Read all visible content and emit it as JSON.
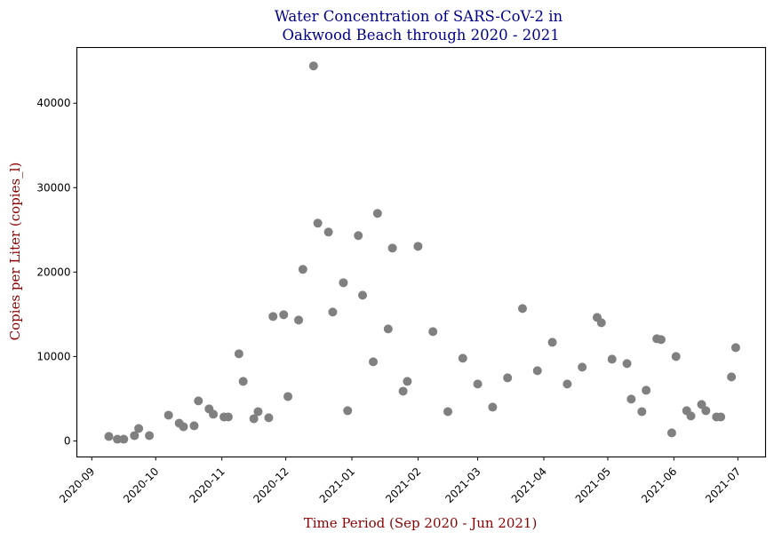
{
  "chart_data": {
    "type": "scatter",
    "title_lines": [
      "Water Concentration of SARS-CoV-2 in",
      " Oakwood Beach through 2020 - 2021"
    ],
    "xlabel": "Time Period (Sep 2020 - Jun 2021)",
    "ylabel": "Copies per Liter (copies_l)",
    "x_type": "date",
    "xlim": [
      "2020-08-25",
      "2021-07-14"
    ],
    "ylim": [
      -1900,
      46600
    ],
    "x_ticks": [
      "2020-09-01",
      "2020-10-01",
      "2020-11-01",
      "2020-12-01",
      "2021-01-01",
      "2021-02-01",
      "2021-03-01",
      "2021-04-01",
      "2021-05-01",
      "2021-06-01",
      "2021-07-01"
    ],
    "x_tick_labels": [
      "2020-09",
      "2020-10",
      "2020-11",
      "2020-12",
      "2021-01",
      "2021-02",
      "2021-03",
      "2021-04",
      "2021-05",
      "2021-06",
      "2021-07"
    ],
    "x_tick_rotation_deg": 45,
    "y_ticks": [
      0,
      10000,
      20000,
      30000,
      40000
    ],
    "y_tick_labels": [
      "0",
      "10000",
      "20000",
      "30000",
      "40000"
    ],
    "grid": false,
    "marker_color": "#808080",
    "title_color": "#00008b",
    "axis_label_color": "#8b0000",
    "series": [
      {
        "name": "copies_l",
        "points": [
          {
            "x": "2020-09-09",
            "y": 530
          },
          {
            "x": "2020-09-13",
            "y": 200
          },
          {
            "x": "2020-09-16",
            "y": 200
          },
          {
            "x": "2020-09-21",
            "y": 630
          },
          {
            "x": "2020-09-23",
            "y": 1470
          },
          {
            "x": "2020-09-28",
            "y": 630
          },
          {
            "x": "2020-10-07",
            "y": 3050
          },
          {
            "x": "2020-10-12",
            "y": 2100
          },
          {
            "x": "2020-10-14",
            "y": 1680
          },
          {
            "x": "2020-10-19",
            "y": 1790
          },
          {
            "x": "2020-10-21",
            "y": 4740
          },
          {
            "x": "2020-10-26",
            "y": 3790
          },
          {
            "x": "2020-10-28",
            "y": 3160
          },
          {
            "x": "2020-11-02",
            "y": 2840
          },
          {
            "x": "2020-11-04",
            "y": 2840
          },
          {
            "x": "2020-11-09",
            "y": 10320
          },
          {
            "x": "2020-11-11",
            "y": 7050
          },
          {
            "x": "2020-11-16",
            "y": 2630
          },
          {
            "x": "2020-11-18",
            "y": 3470
          },
          {
            "x": "2020-11-23",
            "y": 2740
          },
          {
            "x": "2020-11-25",
            "y": 14740
          },
          {
            "x": "2020-11-30",
            "y": 14950
          },
          {
            "x": "2020-12-02",
            "y": 5260
          },
          {
            "x": "2020-12-07",
            "y": 14320
          },
          {
            "x": "2020-12-09",
            "y": 20320
          },
          {
            "x": "2020-12-14",
            "y": 44420
          },
          {
            "x": "2020-12-16",
            "y": 25790
          },
          {
            "x": "2020-12-21",
            "y": 24740
          },
          {
            "x": "2020-12-23",
            "y": 15260
          },
          {
            "x": "2020-12-28",
            "y": 18740
          },
          {
            "x": "2020-12-30",
            "y": 3580
          },
          {
            "x": "2021-01-04",
            "y": 24320
          },
          {
            "x": "2021-01-06",
            "y": 17260
          },
          {
            "x": "2021-01-11",
            "y": 9370
          },
          {
            "x": "2021-01-13",
            "y": 26950
          },
          {
            "x": "2021-01-18",
            "y": 13260
          },
          {
            "x": "2021-01-20",
            "y": 22840
          },
          {
            "x": "2021-01-25",
            "y": 5890
          },
          {
            "x": "2021-01-27",
            "y": 7050
          },
          {
            "x": "2021-02-01",
            "y": 23050
          },
          {
            "x": "2021-02-08",
            "y": 12950
          },
          {
            "x": "2021-02-15",
            "y": 3470
          },
          {
            "x": "2021-02-22",
            "y": 9790
          },
          {
            "x": "2021-03-01",
            "y": 6740
          },
          {
            "x": "2021-03-08",
            "y": 4000
          },
          {
            "x": "2021-03-15",
            "y": 7470
          },
          {
            "x": "2021-03-22",
            "y": 15680
          },
          {
            "x": "2021-03-29",
            "y": 8320
          },
          {
            "x": "2021-04-05",
            "y": 11680
          },
          {
            "x": "2021-04-12",
            "y": 6740
          },
          {
            "x": "2021-04-19",
            "y": 8740
          },
          {
            "x": "2021-04-26",
            "y": 14630
          },
          {
            "x": "2021-04-28",
            "y": 14000
          },
          {
            "x": "2021-05-03",
            "y": 9680
          },
          {
            "x": "2021-05-10",
            "y": 9160
          },
          {
            "x": "2021-05-12",
            "y": 4950
          },
          {
            "x": "2021-05-17",
            "y": 3470
          },
          {
            "x": "2021-05-19",
            "y": 6000
          },
          {
            "x": "2021-05-24",
            "y": 12100
          },
          {
            "x": "2021-05-26",
            "y": 12000
          },
          {
            "x": "2021-05-31",
            "y": 950
          },
          {
            "x": "2021-06-02",
            "y": 10000
          },
          {
            "x": "2021-06-07",
            "y": 3580
          },
          {
            "x": "2021-06-09",
            "y": 2950
          },
          {
            "x": "2021-06-14",
            "y": 4320
          },
          {
            "x": "2021-06-16",
            "y": 3580
          },
          {
            "x": "2021-06-21",
            "y": 2840
          },
          {
            "x": "2021-06-23",
            "y": 2840
          },
          {
            "x": "2021-06-28",
            "y": 7580
          },
          {
            "x": "2021-06-30",
            "y": 11050
          }
        ]
      }
    ]
  }
}
